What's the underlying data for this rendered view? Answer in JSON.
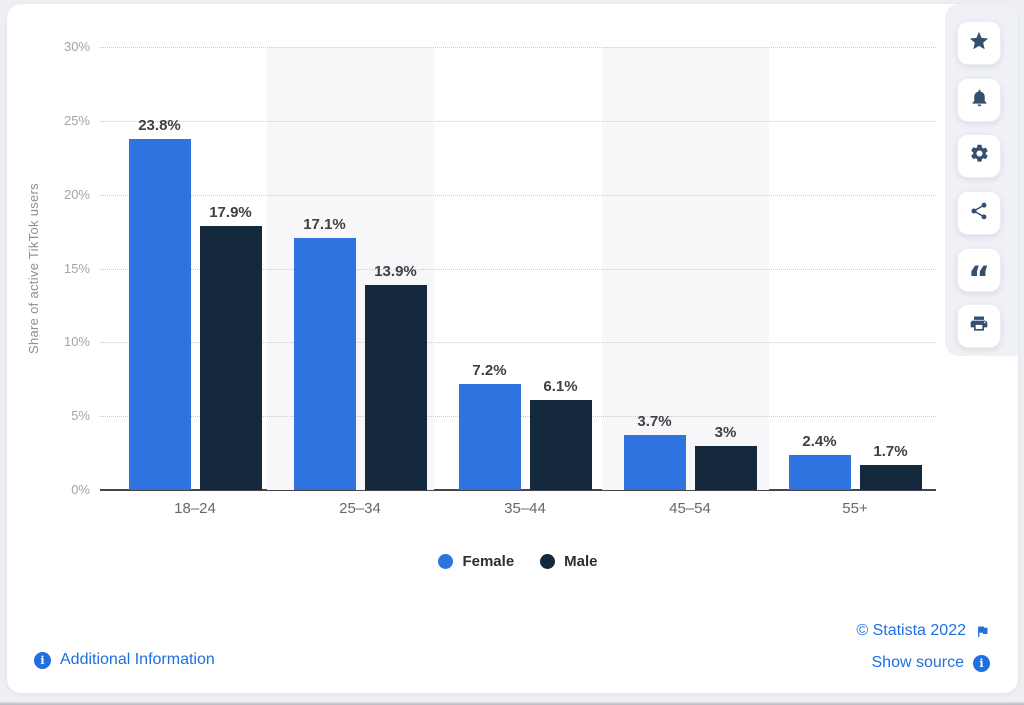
{
  "chart_data": {
    "type": "bar",
    "categories": [
      "18–24",
      "25–34",
      "35–44",
      "45–54",
      "55+"
    ],
    "series": [
      {
        "name": "Female",
        "color": "#2e73df",
        "values": [
          23.8,
          17.1,
          7.2,
          3.7,
          2.4
        ],
        "labels": [
          "23.8%",
          "17.1%",
          "7.2%",
          "3.7%",
          "2.4%"
        ]
      },
      {
        "name": "Male",
        "color": "#14293e",
        "values": [
          17.9,
          13.9,
          6.1,
          3.0,
          1.7
        ],
        "labels": [
          "17.9%",
          "13.9%",
          "6.1%",
          "3%",
          "1.7%"
        ]
      }
    ],
    "xlabel": "",
    "ylabel": "Share of active TikTok users",
    "ylim": [
      0,
      30
    ],
    "ytick_step": 5,
    "ytick_suffix": "%",
    "grid": "horizontal-dotted",
    "legend_position": "bottom",
    "plot_band_colors": [
      "#ffffff",
      "#f7f7f9"
    ]
  },
  "toolbar": {
    "buttons": [
      {
        "name": "favorite",
        "icon": "star-icon"
      },
      {
        "name": "notifications",
        "icon": "bell-icon"
      },
      {
        "name": "settings",
        "icon": "gear-icon"
      },
      {
        "name": "share",
        "icon": "share-icon"
      },
      {
        "name": "cite",
        "icon": "quote-icon"
      },
      {
        "name": "print",
        "icon": "printer-icon"
      }
    ],
    "icon_color": "#34506e"
  },
  "footer": {
    "additional_info_label": "Additional Information",
    "copyright_label": "© Statista 2022",
    "show_source_label": "Show source",
    "link_color": "#1f6fe0",
    "icons": [
      "info-icon",
      "flag-icon",
      "info-icon"
    ]
  }
}
